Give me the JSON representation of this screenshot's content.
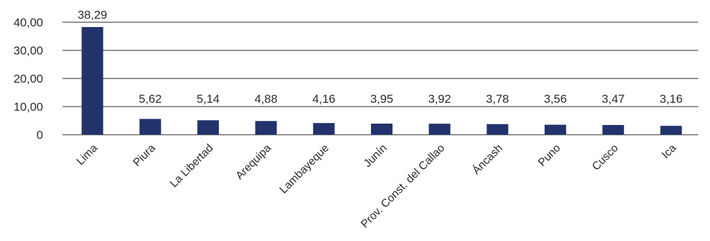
{
  "chart_data": {
    "type": "bar",
    "title": "",
    "xlabel": "",
    "ylabel": "",
    "categories": [
      "Lima",
      "Piura",
      "La Libertad",
      "Arequipa",
      "Lambayeque",
      "Junín",
      "Prov. Const. del Callao",
      "Áncash",
      "Puno",
      "Cusco",
      "Ica"
    ],
    "values": [
      38.29,
      5.62,
      5.14,
      4.88,
      4.16,
      3.95,
      3.92,
      3.78,
      3.56,
      3.47,
      3.16
    ],
    "value_labels": [
      "38,29",
      "5,62",
      "5,14",
      "4,88",
      "4,16",
      "3,95",
      "3,92",
      "3,78",
      "3,56",
      "3,47",
      "3,16"
    ],
    "yticks": [
      0,
      10,
      20,
      30,
      40
    ],
    "ytick_labels": [
      "0",
      "10,00",
      "20,00",
      "30,00",
      "40,00"
    ],
    "ylim": [
      0,
      40
    ],
    "grid": true,
    "legend": "none",
    "bar_color": "#22336b",
    "grid_color": "#6e6e6e"
  }
}
